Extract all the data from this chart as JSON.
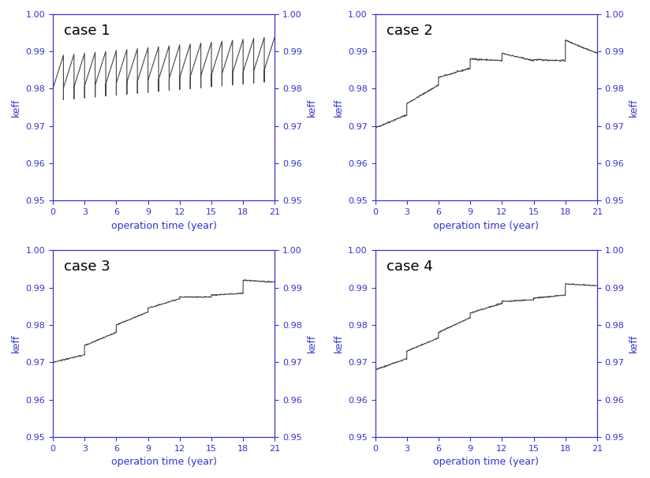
{
  "title": "",
  "cases": [
    "case 1",
    "case 2",
    "case 3",
    "case 4"
  ],
  "xlabel": "operation time (year)",
  "ylabel": "keff",
  "xlim": [
    0,
    21
  ],
  "ylim": [
    0.95,
    1.0
  ],
  "xticks": [
    0,
    3,
    6,
    9,
    12,
    15,
    18,
    21
  ],
  "yticks": [
    0.95,
    0.96,
    0.97,
    0.98,
    0.99,
    1.0
  ],
  "line_color": "#444444",
  "label_color": "#3333cc",
  "figsize": [
    8.24,
    6.06
  ],
  "dpi": 100
}
